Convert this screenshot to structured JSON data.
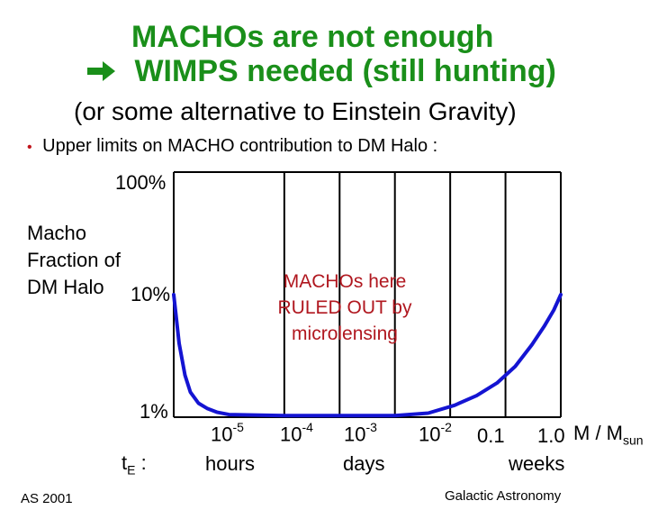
{
  "slide": {
    "title_line1": "MACHOs are not enough",
    "title_line2": "WIMPS needed (still hunting)",
    "arrow_icon": "right-arrow-icon",
    "subtitle": "(or some alternative to Einstein Gravity)",
    "bullet": "Upper limits on MACHO contribution to DM Halo :",
    "footer_left": "AS 2001",
    "footer_right": "Galactic Astronomy",
    "title_color": "#1a8f1a",
    "annotation_color": "#b0171f",
    "bullet_color": "#c0141b"
  },
  "chart_data": {
    "type": "line",
    "y_axis": {
      "label_lines": [
        "Macho",
        "Fraction of",
        "DM Halo"
      ],
      "ticks": [
        "100%",
        "10%",
        "1%"
      ],
      "scale": "log",
      "ylim": [
        1,
        100
      ]
    },
    "x_axis": {
      "label_main": "M / M",
      "label_sub": "sun",
      "ticks": [
        {
          "base": "10",
          "exp": "-5"
        },
        {
          "base": "10",
          "exp": "-4"
        },
        {
          "base": "10",
          "exp": "-3"
        },
        {
          "base": "10",
          "exp": "-2"
        },
        {
          "base": "0.1",
          "exp": ""
        },
        {
          "base": "1.0",
          "exp": ""
        }
      ],
      "scale": "log",
      "xlim": [
        1e-07,
        1
      ]
    },
    "time_row": {
      "label_main": "t",
      "label_sub": "E",
      "label_suffix": " :",
      "units": [
        "hours",
        "days",
        "weeks"
      ]
    },
    "annotation": [
      "MACHOs here",
      "RULED OUT  by",
      "microlensing"
    ],
    "curve_color": "#1414d2",
    "series": [
      {
        "x": [
          1e-07,
          1.25e-07,
          1.6e-07,
          2e-07,
          2.8e-07,
          4e-07,
          6e-07,
          1e-06,
          1e-05,
          0.0001,
          0.001,
          0.004,
          0.012,
          0.03,
          0.07,
          0.15,
          0.3,
          0.5,
          0.75,
          1
        ],
        "y": [
          10,
          4,
          2.2,
          1.6,
          1.3,
          1.18,
          1.1,
          1.05,
          1.03,
          1.03,
          1.03,
          1.08,
          1.25,
          1.5,
          1.9,
          2.6,
          3.9,
          5.5,
          7.5,
          10
        ]
      }
    ]
  }
}
